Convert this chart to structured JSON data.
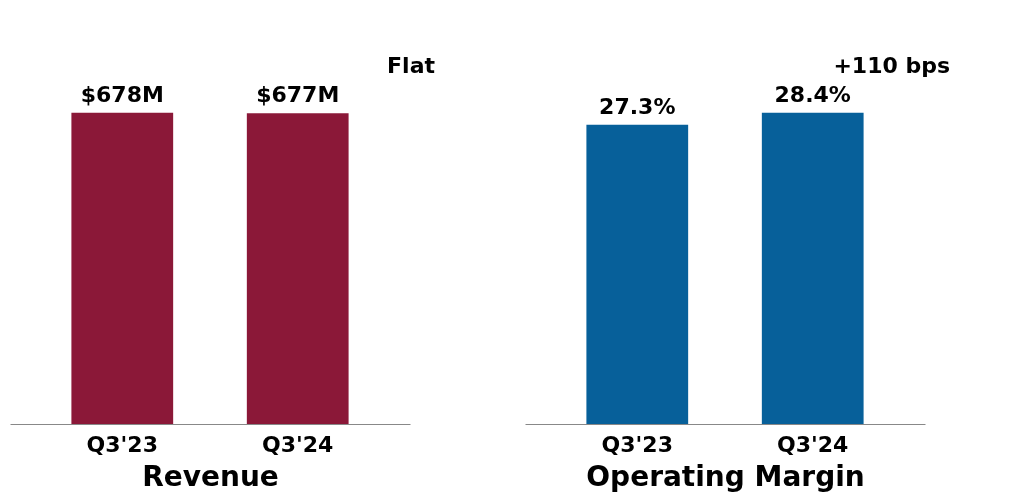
{
  "chart_data": [
    {
      "type": "bar",
      "xlabel": "Revenue",
      "categories": [
        "Q3'23",
        "Q3'24"
      ],
      "values": [
        678,
        677
      ],
      "color": "#8b1838",
      "value_labels": [
        "$678M",
        "$677M"
      ],
      "annotations": [
        "Flat"
      ]
    },
    {
      "type": "bar",
      "xlabel": "Operating Margin",
      "categories": [
        "Q3'23",
        "Q3'24"
      ],
      "values": [
        27.3,
        28.4
      ],
      "color": "#07609a",
      "value_labels": [
        "27.3%",
        "28.4%"
      ],
      "annotations": [
        "+110 bps"
      ]
    }
  ]
}
